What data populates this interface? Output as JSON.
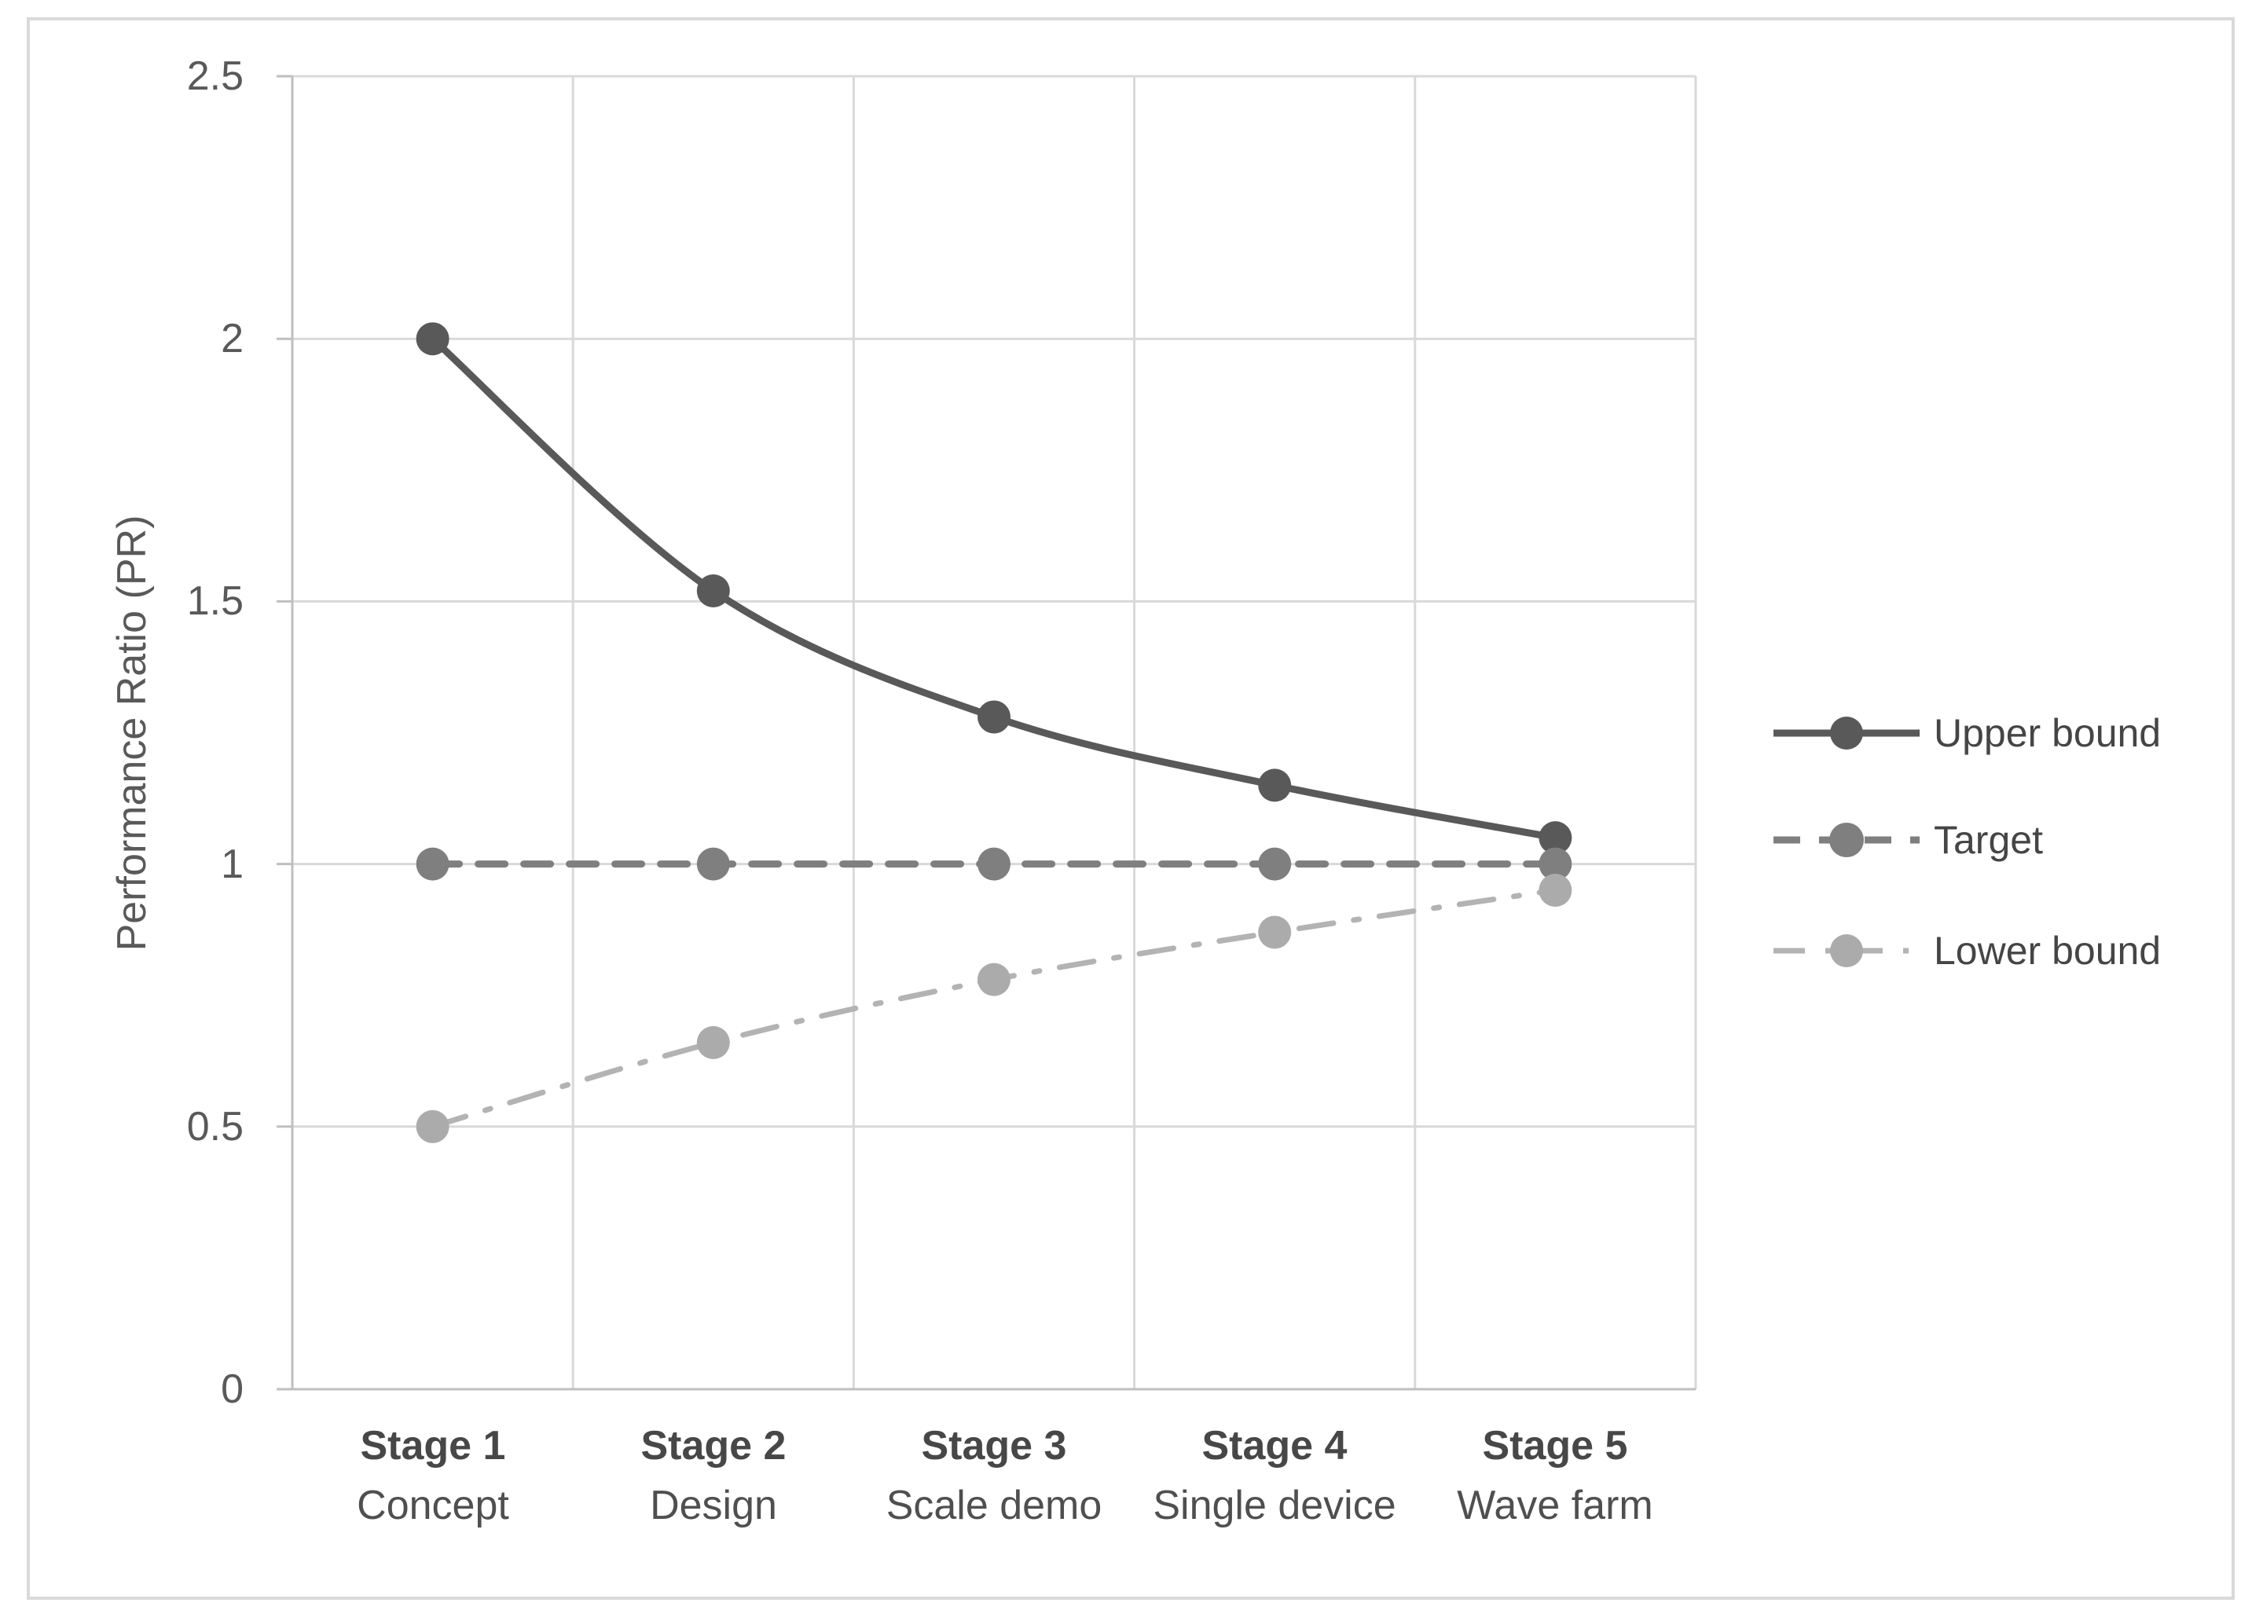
{
  "chart_data": {
    "type": "line",
    "title": "",
    "xlabel": "",
    "ylabel": "Performance Ratio (PR)",
    "ylim": [
      0,
      2.5
    ],
    "y_tick_interval": 0.5,
    "grid": true,
    "legend_position": "right",
    "y_ticks": [
      {
        "value": 2.5,
        "label": "2.5"
      },
      {
        "value": 2.0,
        "label": "2"
      },
      {
        "value": 1.5,
        "label": "1.5"
      },
      {
        "value": 1.0,
        "label": "1"
      },
      {
        "value": 0.5,
        "label": "0.5"
      },
      {
        "value": 0.0,
        "label": "0"
      }
    ],
    "categories": [
      {
        "stage": "Stage 1",
        "sublabel": "Concept"
      },
      {
        "stage": "Stage 2",
        "sublabel": "Design"
      },
      {
        "stage": "Stage 3",
        "sublabel": "Scale demo"
      },
      {
        "stage": "Stage 4",
        "sublabel": "Single device"
      },
      {
        "stage": "Stage 5",
        "sublabel": "Wave farm"
      }
    ],
    "series": [
      {
        "name": "Upper bound",
        "values": [
          2.0,
          1.52,
          1.28,
          1.15,
          1.05
        ],
        "color": "#595959",
        "marker_color": "#595959",
        "line_style": "solid",
        "line_width": 9,
        "smooth": true
      },
      {
        "name": "Target",
        "values": [
          1.0,
          1.0,
          1.0,
          1.0,
          1.0
        ],
        "color": "#7f7f7f",
        "marker_color": "#7f7f7f",
        "line_style": "dashed",
        "line_width": 9,
        "smooth": false
      },
      {
        "name": "Lower bound",
        "values": [
          0.5,
          0.66,
          0.78,
          0.87,
          0.95
        ],
        "color": "#b3b3b3",
        "marker_color": "#ababab",
        "line_style": "dashdot",
        "line_width": 7,
        "smooth": true
      }
    ],
    "colors": {
      "background": "#ffffff",
      "chart_border": "#d9d9d9",
      "gridline": "#d9d9d9",
      "axis_line": "#bfbfbf",
      "tick_label": "#595959",
      "category_label": "#474747",
      "legend_label": "#454545"
    }
  }
}
